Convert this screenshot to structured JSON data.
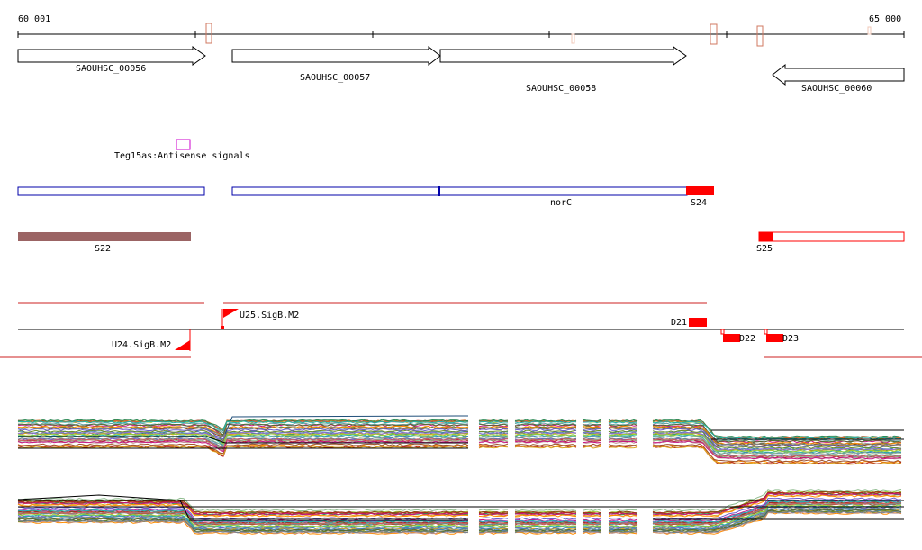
{
  "axis": {
    "start_label": "60 001",
    "end_label": "65 000"
  },
  "genes": [
    {
      "label": "SAOUHSC_00056",
      "direction": "forward"
    },
    {
      "label": "SAOUHSC_00057",
      "direction": "forward"
    },
    {
      "label": "SAOUHSC_00058",
      "direction": "forward"
    },
    {
      "label": "SAOUHSC_00060",
      "direction": "reverse"
    }
  ],
  "antisense": {
    "label": "Teg15as:Antisense signals"
  },
  "annotation_track": {
    "norc_label": "norC",
    "s24_label": "S24"
  },
  "segments_track": {
    "s22_label": "S22",
    "s25_label": "S25"
  },
  "tss_track": {
    "u25_label": "U25.SigB.M2",
    "u24_label": "U24.SigB.M2",
    "d21_label": "D21",
    "d22_label": "D22",
    "d23_label": "D23"
  },
  "colors": {
    "gene_outline": "#000000",
    "annotation_blue": "#0000aa",
    "highlight_red": "#ff0000",
    "segment_brown": "#9b6464",
    "antisense_magenta": "#cc00cc",
    "marker_salmon": "#d07860"
  }
}
